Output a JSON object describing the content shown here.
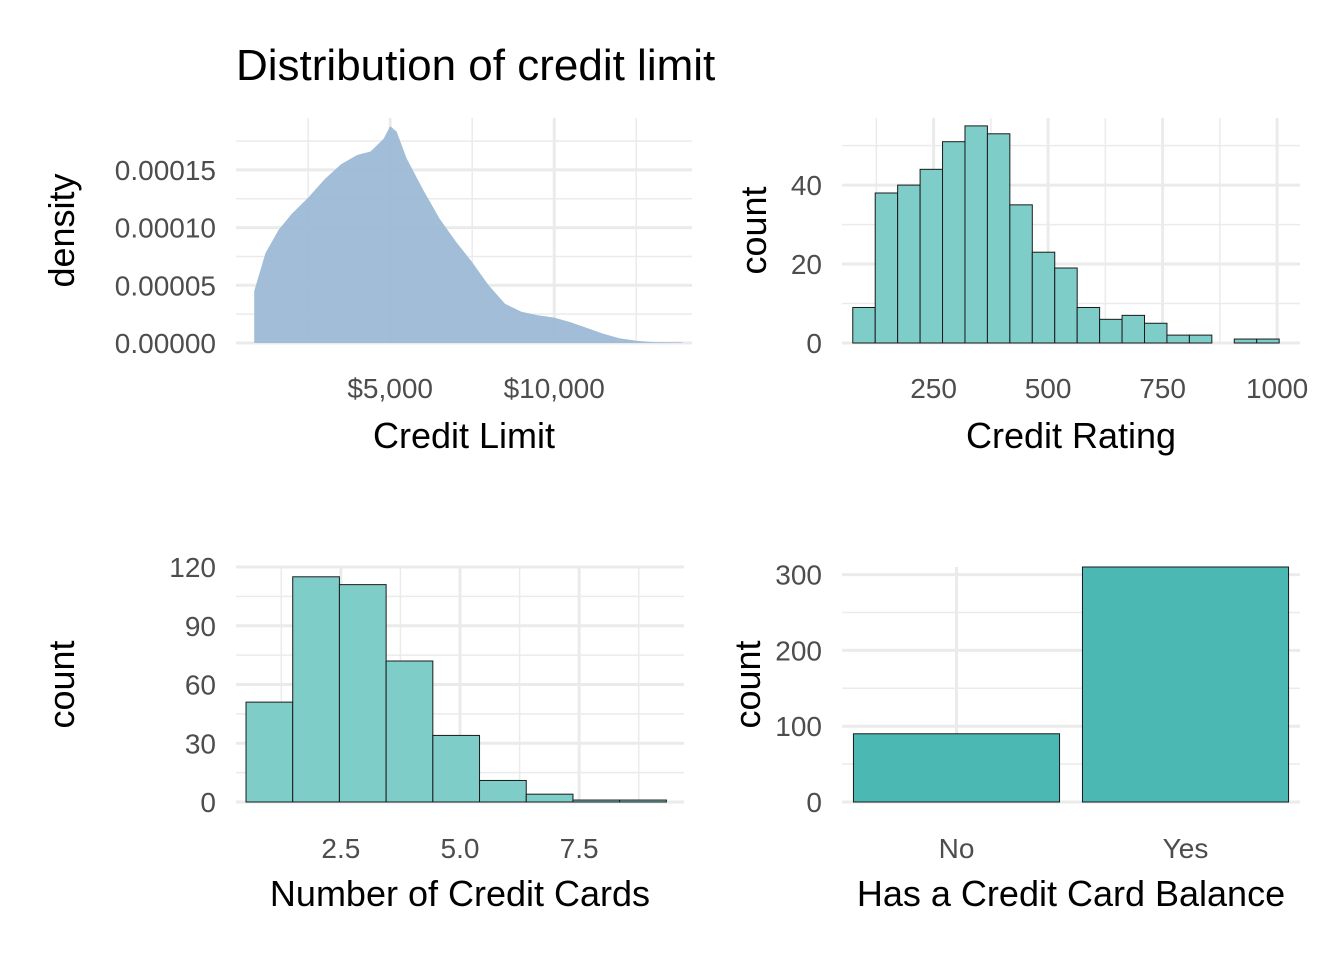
{
  "chart_data": [
    {
      "type": "area",
      "title": "Distribution of credit limit",
      "xlabel": "Credit Limit",
      "ylabel": "density",
      "xlim": [
        300,
        14200
      ],
      "ylim": [
        0,
        0.000195
      ],
      "x_ticks": [
        5000,
        10000
      ],
      "x_tick_labels": [
        "$5,000",
        "$10,000"
      ],
      "y_ticks": [
        0,
        5e-05,
        0.0001,
        0.00015
      ],
      "y_tick_labels": [
        "0.00000",
        "0.00005",
        "0.00010",
        "0.00015"
      ],
      "fill_color": "#9db9d5",
      "grid": true,
      "points": [
        [
          855,
          4.5e-05
        ],
        [
          1200,
          7.8e-05
        ],
        [
          1600,
          9.8e-05
        ],
        [
          2000,
          0.000112
        ],
        [
          2500,
          0.000126
        ],
        [
          3000,
          0.000142
        ],
        [
          3500,
          0.000155
        ],
        [
          4000,
          0.000163
        ],
        [
          4400,
          0.000166
        ],
        [
          4800,
          0.000177
        ],
        [
          5000,
          0.000188
        ],
        [
          5200,
          0.000183
        ],
        [
          5500,
          0.00016
        ],
        [
          6000,
          0.000133
        ],
        [
          6500,
          0.000108
        ],
        [
          7000,
          8.8e-05
        ],
        [
          7500,
          7e-05
        ],
        [
          8000,
          5e-05
        ],
        [
          8500,
          3.4e-05
        ],
        [
          9000,
          2.7e-05
        ],
        [
          9500,
          2.4e-05
        ],
        [
          10000,
          2.2e-05
        ],
        [
          10500,
          1.8e-05
        ],
        [
          11000,
          1.3e-05
        ],
        [
          11500,
          8e-06
        ],
        [
          12000,
          4e-06
        ],
        [
          12500,
          2e-06
        ],
        [
          13000,
          8e-07
        ],
        [
          13913,
          5e-07
        ]
      ]
    },
    {
      "type": "bar",
      "title": "",
      "xlabel": "Credit Rating",
      "ylabel": "count",
      "xlim": [
        50,
        1050
      ],
      "ylim": [
        0,
        57
      ],
      "x_ticks": [
        250,
        500,
        750,
        1000
      ],
      "x_tick_labels": [
        "250",
        "500",
        "750",
        "1000"
      ],
      "y_ticks": [
        0,
        20,
        40
      ],
      "y_tick_labels": [
        "0",
        "20",
        "40"
      ],
      "fill_color": "#7fcdc9",
      "grid": true,
      "bin_width": 49,
      "bin_centers": [
        98,
        147,
        196,
        245,
        294,
        343,
        392,
        441,
        490,
        539,
        588,
        637,
        686,
        735,
        784,
        833,
        882,
        931,
        980
      ],
      "values": [
        9,
        38,
        40,
        44,
        51,
        55,
        53,
        35,
        23,
        19,
        9,
        6,
        7,
        5,
        2,
        2,
        0,
        1,
        1
      ]
    },
    {
      "type": "bar",
      "title": "",
      "xlabel": "Number of Credit Cards",
      "ylabel": "count",
      "xlim": [
        0.3,
        9.7
      ],
      "ylim": [
        0,
        120
      ],
      "x_ticks": [
        2.5,
        5.0,
        7.5
      ],
      "x_tick_labels": [
        "2.5",
        "5.0",
        "7.5"
      ],
      "y_ticks": [
        0,
        30,
        60,
        90,
        120
      ],
      "y_tick_labels": [
        "0",
        "30",
        "60",
        "90",
        "120"
      ],
      "fill_color": "#7fcdc9",
      "grid": true,
      "bin_width": 0.98,
      "bin_centers": [
        1.0,
        1.98,
        2.96,
        3.94,
        4.92,
        5.9,
        6.88,
        7.86,
        8.84
      ],
      "values": [
        51,
        115,
        111,
        72,
        34,
        11,
        4,
        1,
        1
      ]
    },
    {
      "type": "bar",
      "title": "",
      "xlabel": "Has a Credit Card Balance",
      "ylabel": "count",
      "ylim": [
        0,
        310
      ],
      "categories": [
        "No",
        "Yes"
      ],
      "values": [
        90,
        310
      ],
      "y_ticks": [
        0,
        100,
        200,
        300
      ],
      "y_tick_labels": [
        "0",
        "100",
        "200",
        "300"
      ],
      "fill_color": "#4bb8b3",
      "grid": true
    }
  ]
}
